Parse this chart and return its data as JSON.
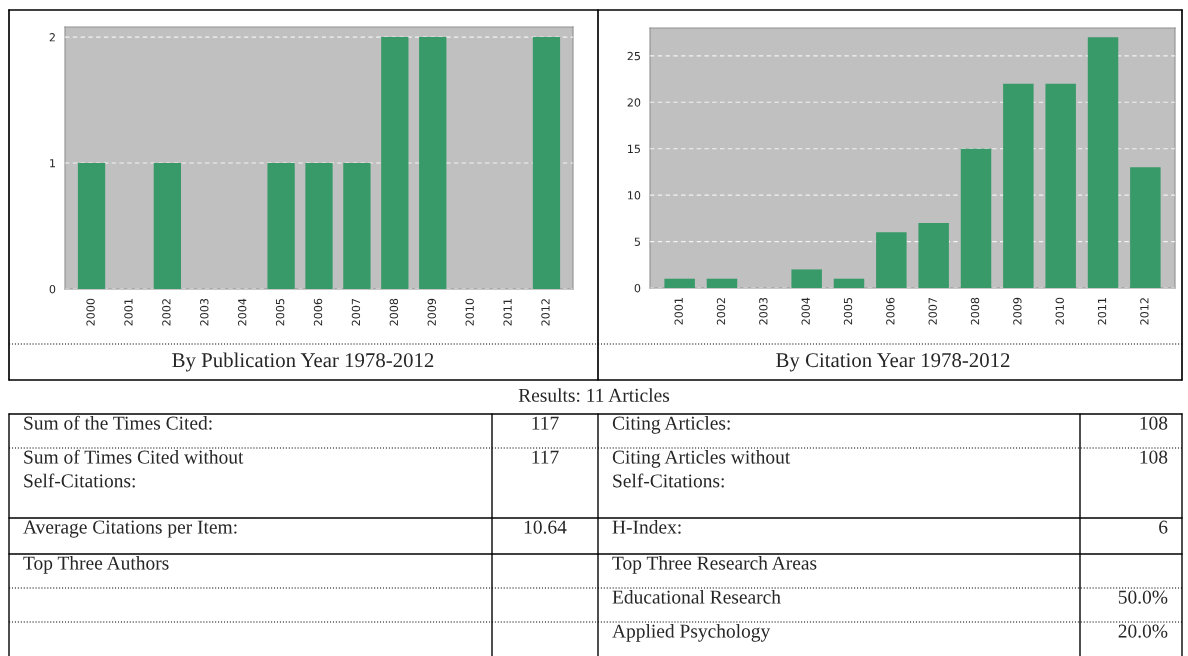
{
  "chart_data": [
    {
      "type": "bar",
      "xlabel": "By Publication Year 1978-2012",
      "categories": [
        "2000",
        "2001",
        "2002",
        "2003",
        "2004",
        "2005",
        "2006",
        "2007",
        "2008",
        "2009",
        "2010",
        "2011",
        "2012"
      ],
      "values": [
        1,
        0,
        1,
        0,
        0,
        1,
        1,
        1,
        2,
        2,
        0,
        0,
        2
      ],
      "color": "#389a68",
      "ylim": [
        0,
        2.08
      ],
      "yticks": [
        0,
        1,
        2
      ],
      "grid": "y"
    },
    {
      "type": "bar",
      "xlabel": "By Citation Year 1978-2012",
      "categories": [
        "2001",
        "2002",
        "2003",
        "2004",
        "2005",
        "2006",
        "2007",
        "2008",
        "2009",
        "2010",
        "2011",
        "2012"
      ],
      "values": [
        1,
        1,
        0,
        2,
        1,
        6,
        7,
        15,
        22,
        22,
        27,
        13
      ],
      "color": "#389a68",
      "ylim": [
        0,
        28
      ],
      "yticks": [
        0,
        5,
        10,
        15,
        20,
        25
      ],
      "grid": "y"
    },
    {
      "type": "other",
      "title": "Results: 11 Articles",
      "annotations": [
        "Sum of the Times Cited:",
        "117",
        "Citing Articles:",
        "108",
        "Sum of Times Cited without\nSelf-Citations:",
        "117",
        "Citing Articles without\nSelf-Citations:",
        "108",
        "Average Citations per Item:",
        "10.64",
        "H-Index:",
        "6",
        "Top Three Authors",
        "Top Three Research Areas",
        "Educational Research",
        "50.0%",
        "Applied Psychology",
        "20.0%"
      ]
    }
  ]
}
